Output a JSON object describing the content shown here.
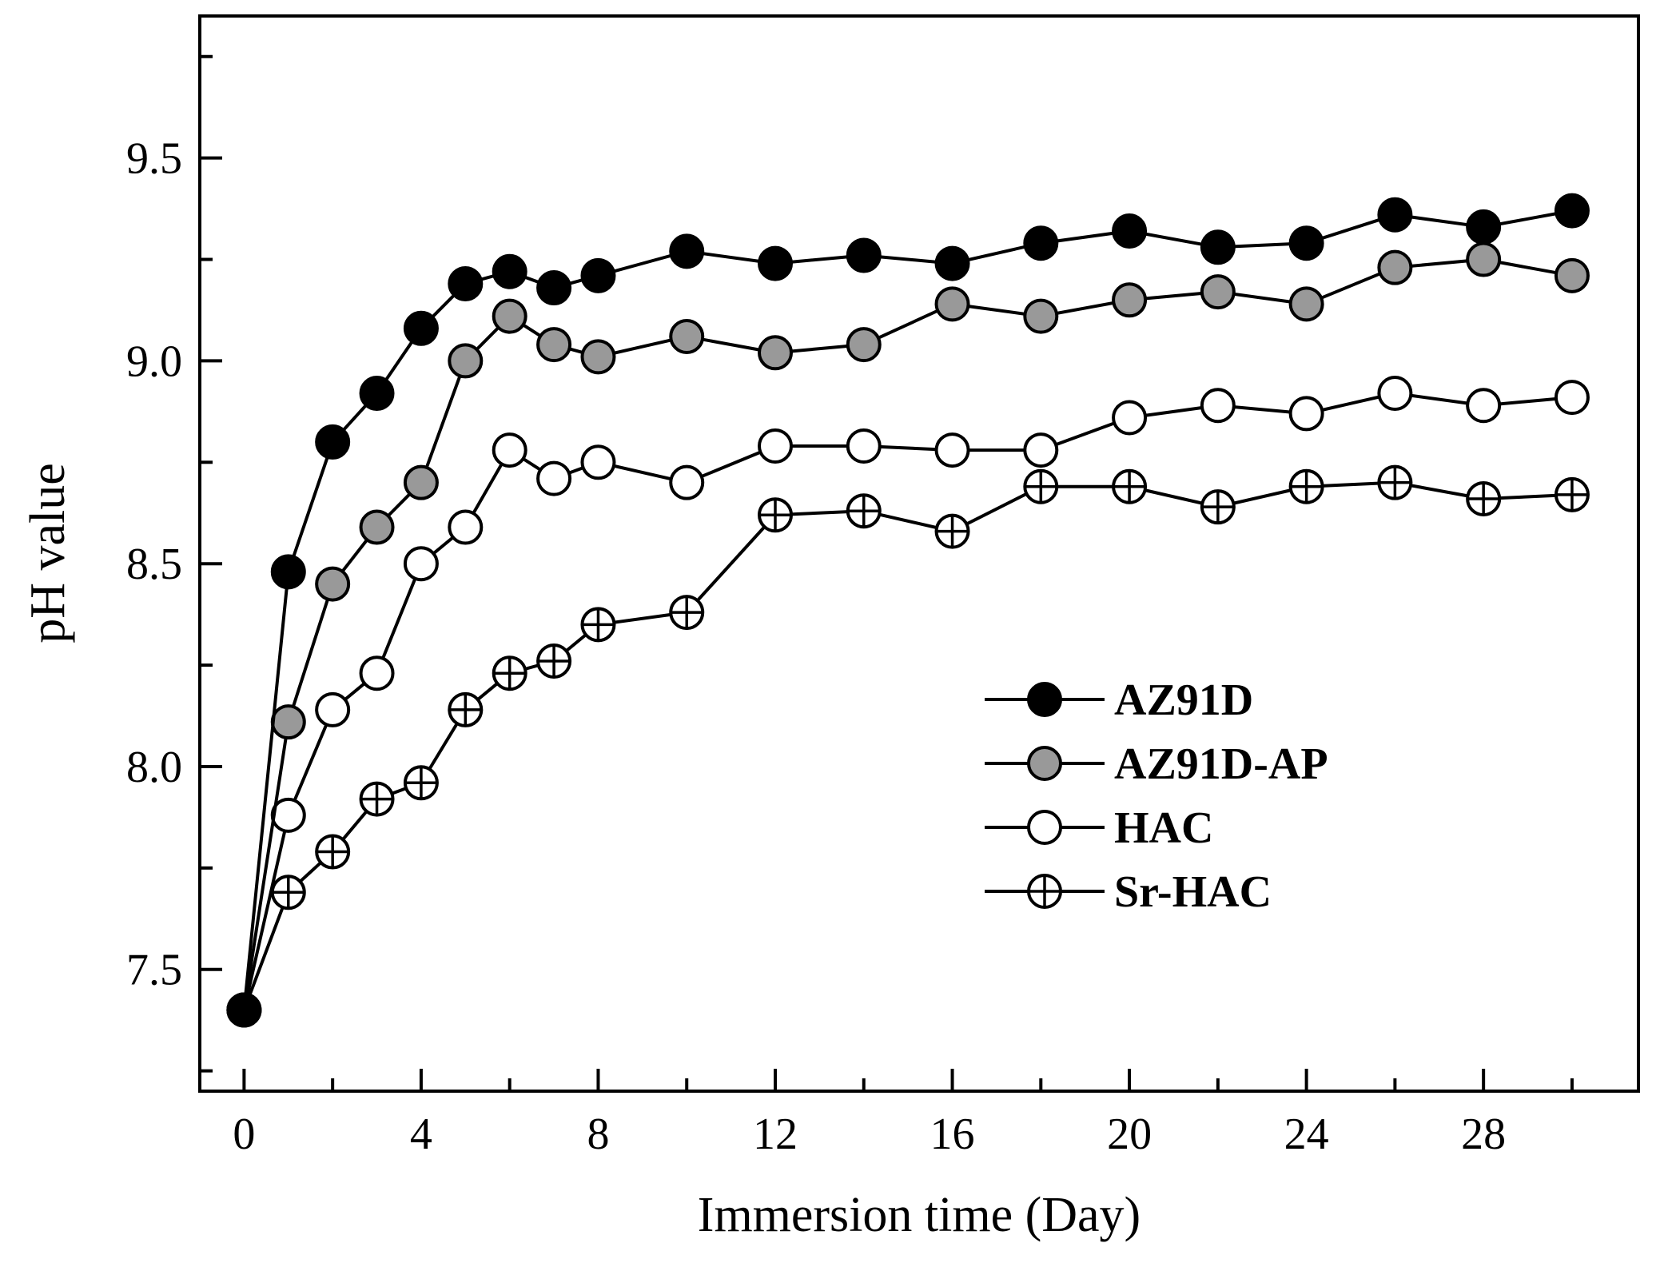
{
  "chart_data": {
    "type": "line",
    "title": "",
    "xlabel": "Immersion time (Day)",
    "ylabel": "pH value",
    "xlim": [
      -1,
      31.5
    ],
    "ylim": [
      7.2,
      9.85
    ],
    "xticks": [
      0,
      4,
      8,
      12,
      16,
      20,
      24,
      28
    ],
    "xticks_minor": [
      2,
      6,
      10,
      14,
      18,
      22,
      26,
      30
    ],
    "yticks": [
      7.5,
      8.0,
      8.5,
      9.0,
      9.5
    ],
    "ytick_labels": [
      "7.5",
      "8.0",
      "8.5",
      "9.0",
      "9.5"
    ],
    "grid": false,
    "legend_position": "center-right",
    "x": [
      0,
      1,
      2,
      3,
      4,
      5,
      6,
      7,
      8,
      10,
      12,
      14,
      16,
      18,
      20,
      22,
      24,
      26,
      28,
      30
    ],
    "series": [
      {
        "name": "AZ91D",
        "marker": "filled-black",
        "color": "#000000",
        "values": [
          7.4,
          8.48,
          8.8,
          8.92,
          9.08,
          9.19,
          9.22,
          9.18,
          9.21,
          9.27,
          9.24,
          9.26,
          9.24,
          9.29,
          9.32,
          9.28,
          9.29,
          9.36,
          9.33,
          9.37
        ]
      },
      {
        "name": "AZ91D-AP",
        "marker": "filled-gray",
        "color": "#999999",
        "values": [
          7.4,
          8.11,
          8.45,
          8.59,
          8.7,
          9.0,
          9.11,
          9.04,
          9.01,
          9.06,
          9.02,
          9.04,
          9.14,
          9.11,
          9.15,
          9.17,
          9.14,
          9.23,
          9.25,
          9.21
        ]
      },
      {
        "name": "HAC",
        "marker": "open-circle",
        "color": "#ffffff",
        "values": [
          7.4,
          7.88,
          8.14,
          8.23,
          8.5,
          8.59,
          8.78,
          8.71,
          8.75,
          8.7,
          8.79,
          8.79,
          8.78,
          8.78,
          8.86,
          8.89,
          8.87,
          8.92,
          8.89,
          8.91
        ]
      },
      {
        "name": "Sr-HAC",
        "marker": "circle-plus",
        "color": "#ffffff",
        "values": [
          7.4,
          7.69,
          7.79,
          7.92,
          7.96,
          8.14,
          8.23,
          8.26,
          8.35,
          8.38,
          8.62,
          8.63,
          8.58,
          8.69,
          8.69,
          8.64,
          8.69,
          8.7,
          8.66,
          8.67
        ]
      }
    ]
  }
}
